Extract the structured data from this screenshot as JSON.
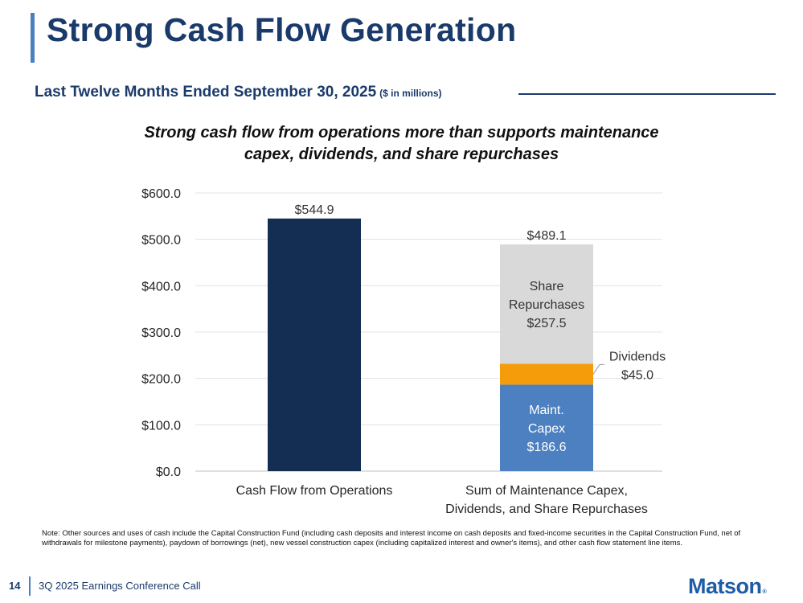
{
  "header": {
    "title": "Strong Cash Flow Generation",
    "subtitle": "Last Twelve Months Ended September 30, 2025",
    "subtitle_unit": "($ in millions)"
  },
  "headline": {
    "line1": "Strong cash flow from operations more than supports maintenance",
    "line2": "capex, dividends, and share repurchases"
  },
  "chart_data": {
    "type": "bar",
    "stacked": true,
    "ylim": [
      0,
      600
    ],
    "yticks": [
      0,
      100,
      200,
      300,
      400,
      500,
      600
    ],
    "ytick_labels": [
      "$0.0",
      "$100.0",
      "$200.0",
      "$300.0",
      "$400.0",
      "$500.0",
      "$600.0"
    ],
    "grid": true,
    "categories": [
      {
        "line1": "Cash Flow from Operations",
        "line2": ""
      },
      {
        "line1": "Sum of Maintenance Capex,",
        "line2": "Dividends, and Share Repurchases"
      }
    ],
    "totals": [
      "$544.9",
      "$489.1"
    ],
    "series": [
      {
        "key": "cfo",
        "values": [
          544.9,
          0
        ],
        "color": "#142d52",
        "label": [
          "",
          "",
          ""
        ]
      },
      {
        "key": "capex",
        "values": [
          0,
          186.6
        ],
        "color": "#4c80c0",
        "label": [
          "Maint.",
          "Capex",
          "$186.6"
        ],
        "label_color": "#ffffff"
      },
      {
        "key": "div",
        "values": [
          0,
          45.0
        ],
        "color": "#f59c0b",
        "label": [
          "Dividends",
          "$45.0"
        ],
        "label_color": "#333333"
      },
      {
        "key": "rep",
        "values": [
          0,
          257.5
        ],
        "color": "#d9d9d9",
        "label": [
          "Share",
          "Repurchases",
          "$257.5"
        ],
        "label_color": "#333333"
      }
    ]
  },
  "note": "Note: Other sources and uses of cash include the Capital Construction Fund (including cash deposits and interest income on cash deposits and fixed-income securities in the Capital Construction Fund, net of withdrawals for milestone payments), paydown of borrowings (net), new vessel construction capex (including capitalized interest and owner's items), and other cash flow statement line items.",
  "footer": {
    "page_number": "14",
    "event": "3Q 2025 Earnings Conference Call",
    "logo": "Matson",
    "logo_mark": "®"
  }
}
